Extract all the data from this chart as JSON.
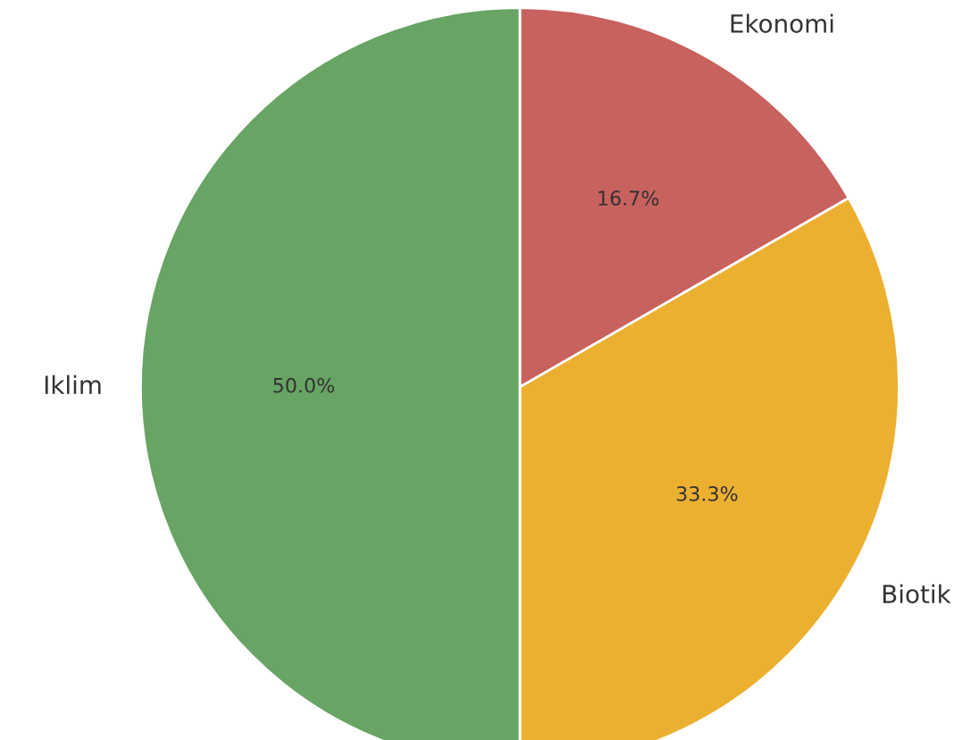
{
  "chart_data": {
    "type": "pie",
    "categories": [
      "Ekonomi",
      "Biotik",
      "Iklim"
    ],
    "values": [
      16.7,
      33.3,
      50.0
    ],
    "colors": [
      "#c8625f",
      "#ecb031",
      "#68a464"
    ],
    "value_labels": [
      "16.7%",
      "33.3%",
      "50.0%"
    ]
  }
}
